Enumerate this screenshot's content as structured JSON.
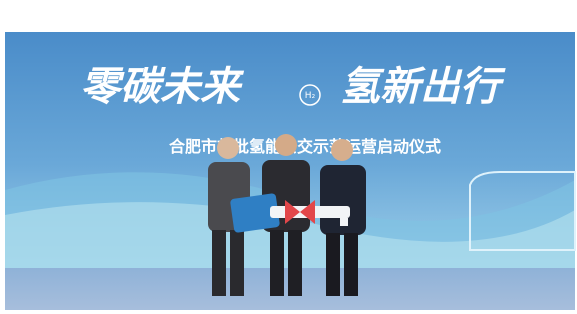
{
  "banner": {
    "slogan_left": "零碳未来",
    "badge": "H₂",
    "slogan_right": "氢新出行",
    "subtitle": "合肥市首批氢能公交示范运营启动仪式"
  }
}
